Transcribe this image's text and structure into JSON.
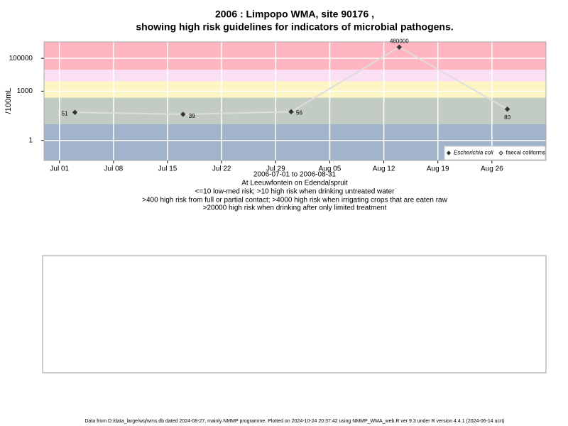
{
  "chart_data": {
    "type": "line",
    "title": "2006 : Limpopo WMA, site 90176 ,",
    "subtitle": "showing high risk guidelines for indicators of microbial pathogens.",
    "ylabel": "/100mL",
    "xlabel": "2006-07-01 to 2006-08-31",
    "site": "At Leeuwfontein on Edendalspruit",
    "notes": [
      "<=10 low-med risk; >10 high risk when drinking untreated water",
      ">400 high risk from full or partial contact; >4000 high risk when irrigating crops that are eaten raw",
      ">20000 high risk when drinking after only limited treatment"
    ],
    "footer": "Data from D:/data_large/wq/wms.db dated 2024-08-27, mainly NMMP programme. Plotted on 2024-10-24 20:37:42 using NMMP_WMA_web.R ver 9.3 under R version 4.4.1 (2024-06-14 ucrt)",
    "log_y": true,
    "grid": true,
    "legend": "bottomright",
    "x": [
      "2006-07-03",
      "2006-07-17",
      "2006-07-31",
      "2006-08-14",
      "2006-08-28"
    ],
    "series": [
      {
        "name": "Escherichia coli",
        "color": "#333333",
        "line_color": "#dddddd",
        "marker": "diamond",
        "values": [
          51,
          39,
          56,
          480000,
          80
        ]
      },
      {
        "name": "faecal coliforms",
        "color": "#333333",
        "marker": "open-diamond",
        "values": [
          null,
          null,
          null,
          null,
          null
        ]
      }
    ],
    "bands": [
      {
        "from": null,
        "to": 10,
        "color": "#a2b4cc"
      },
      {
        "from": 10,
        "to": 400,
        "color": "#c3ccc2"
      },
      {
        "from": 400,
        "to": 4000,
        "color": "#fdf6c4"
      },
      {
        "from": 4000,
        "to": 20000,
        "color": "#fbe0f5"
      },
      {
        "from": 20000,
        "to": null,
        "color": "#ffb6c1"
      }
    ],
    "xlim": [
      "2006-06-29",
      "2006-09-02"
    ],
    "xticks": [
      {
        "value": "2006-07-01",
        "label": "Jul 01"
      },
      {
        "value": "2006-07-08",
        "label": "Jul 08"
      },
      {
        "value": "2006-07-15",
        "label": "Jul 15"
      },
      {
        "value": "2006-07-22",
        "label": "Jul 22"
      },
      {
        "value": "2006-07-29",
        "label": "Jul 29"
      },
      {
        "value": "2006-08-05",
        "label": "Aug 05"
      },
      {
        "value": "2006-08-12",
        "label": "Aug 12"
      },
      {
        "value": "2006-08-19",
        "label": "Aug 19"
      },
      {
        "value": "2006-08-26",
        "label": "Aug 26"
      }
    ],
    "ylim": [
      0.06,
      1000000
    ],
    "yticks": [
      1,
      1000,
      100000
    ]
  }
}
